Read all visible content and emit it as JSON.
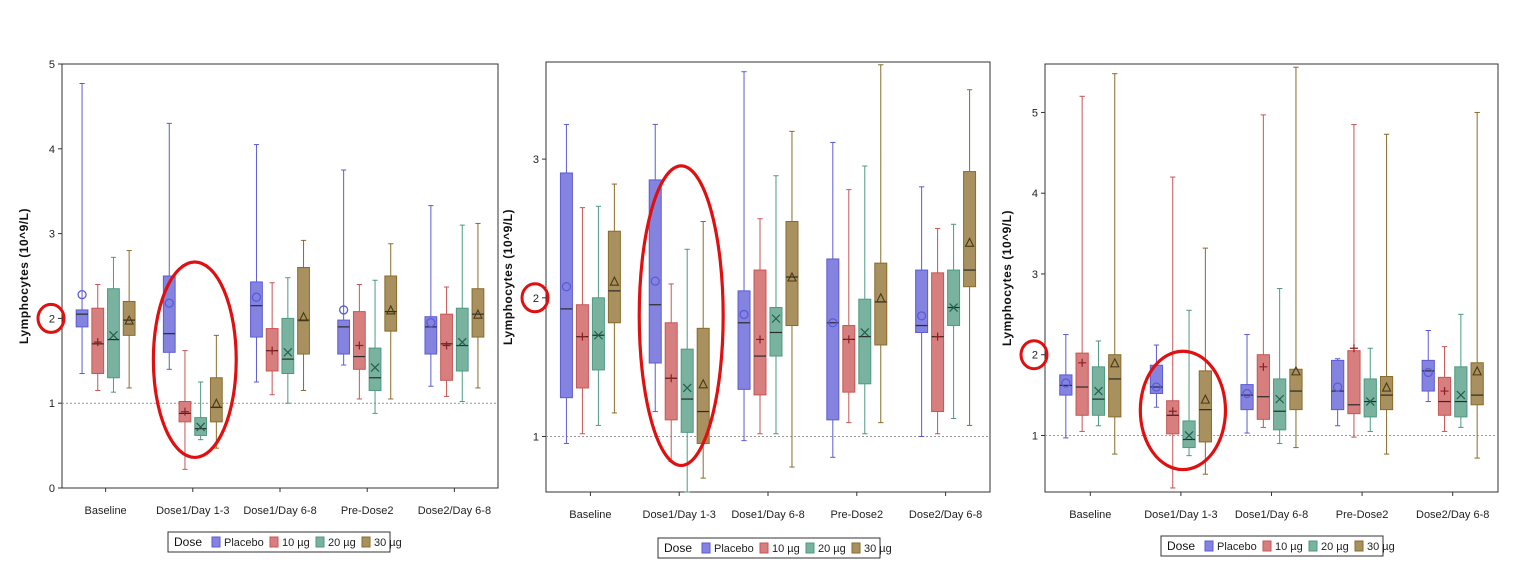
{
  "chart_data": [
    {
      "type": "box",
      "ylabel": "Lymphocytes (10^9/L)",
      "ylim": [
        0,
        5
      ],
      "yticks": [
        0,
        1,
        2,
        3,
        4,
        5
      ],
      "reference_line": 1,
      "categories": [
        "Baseline",
        "Dose1/Day 1-3",
        "Dose1/Day 6-8",
        "Pre-Dose2",
        "Dose2/Day 6-8"
      ],
      "legend_title": "Dose",
      "legend_position": "bottom",
      "series": [
        {
          "name": "Placebo",
          "color": "#5b5bd6",
          "marker": "circle",
          "boxes": [
            {
              "min": 1.35,
              "q1": 1.9,
              "median": 2.05,
              "q3": 2.1,
              "max": 4.77,
              "mean": 2.28
            },
            {
              "min": 1.4,
              "q1": 1.6,
              "median": 1.82,
              "q3": 2.5,
              "max": 4.3,
              "mean": 2.18
            },
            {
              "min": 1.25,
              "q1": 1.78,
              "median": 2.15,
              "q3": 2.43,
              "max": 4.05,
              "mean": 2.25
            },
            {
              "min": 1.45,
              "q1": 1.58,
              "median": 1.9,
              "q3": 1.98,
              "max": 3.75,
              "mean": 2.1
            },
            {
              "min": 1.2,
              "q1": 1.58,
              "median": 1.9,
              "q3": 2.02,
              "max": 3.33,
              "mean": 1.95
            }
          ]
        },
        {
          "name": "10 µg",
          "color": "#c95454",
          "marker": "plus",
          "boxes": [
            {
              "min": 1.15,
              "q1": 1.35,
              "median": 1.7,
              "q3": 2.12,
              "max": 2.4,
              "mean": 1.72
            },
            {
              "min": 0.22,
              "q1": 0.78,
              "median": 0.88,
              "q3": 1.02,
              "max": 1.62,
              "mean": 0.9
            },
            {
              "min": 1.1,
              "q1": 1.38,
              "median": 1.62,
              "q3": 1.88,
              "max": 2.42,
              "mean": 1.62
            },
            {
              "min": 1.05,
              "q1": 1.4,
              "median": 1.55,
              "q3": 2.08,
              "max": 2.4,
              "mean": 1.68
            },
            {
              "min": 1.08,
              "q1": 1.27,
              "median": 1.7,
              "q3": 2.05,
              "max": 2.37,
              "mean": 1.68
            }
          ]
        },
        {
          "name": "20 µg",
          "color": "#4c9a80",
          "marker": "x",
          "boxes": [
            {
              "min": 1.13,
              "q1": 1.3,
              "median": 1.75,
              "q3": 2.35,
              "max": 2.72,
              "mean": 1.8
            },
            {
              "min": 0.57,
              "q1": 0.62,
              "median": 0.7,
              "q3": 0.83,
              "max": 1.25,
              "mean": 0.72
            },
            {
              "min": 1.0,
              "q1": 1.35,
              "median": 1.52,
              "q3": 2.0,
              "max": 2.48,
              "mean": 1.6
            },
            {
              "min": 0.88,
              "q1": 1.15,
              "median": 1.3,
              "q3": 1.65,
              "max": 2.45,
              "mean": 1.42
            },
            {
              "min": 1.02,
              "q1": 1.38,
              "median": 1.68,
              "q3": 2.12,
              "max": 3.1,
              "mean": 1.72
            }
          ]
        },
        {
          "name": "30 µg",
          "color": "#8b6b2a",
          "marker": "triangle",
          "boxes": [
            {
              "min": 1.18,
              "q1": 1.8,
              "median": 1.98,
              "q3": 2.2,
              "max": 2.8,
              "mean": 1.98
            },
            {
              "min": 0.47,
              "q1": 0.78,
              "median": 0.95,
              "q3": 1.3,
              "max": 1.8,
              "mean": 1.0
            },
            {
              "min": 1.15,
              "q1": 1.58,
              "median": 1.98,
              "q3": 2.6,
              "max": 2.92,
              "mean": 2.02
            },
            {
              "min": 1.05,
              "q1": 1.85,
              "median": 2.08,
              "q3": 2.5,
              "max": 2.88,
              "mean": 2.1
            },
            {
              "min": 1.18,
              "q1": 1.78,
              "median": 2.05,
              "q3": 2.35,
              "max": 3.12,
              "mean": 2.05
            }
          ]
        }
      ],
      "annotations": [
        {
          "type": "circle",
          "target": "y-tick 2"
        },
        {
          "type": "circle",
          "target": "Dose1/Day 1-3 boxes"
        }
      ]
    },
    {
      "type": "box",
      "ylabel": "Lymphocytes (10^9/L)",
      "ylim": [
        0.6,
        3.7
      ],
      "yticks": [
        1,
        2,
        3
      ],
      "reference_line": 1,
      "categories": [
        "Baseline",
        "Dose1/Day 1-3",
        "Dose1/Day 6-8",
        "Pre-Dose2",
        "Dose2/Day 6-8"
      ],
      "legend_title": "Dose",
      "legend_position": "bottom",
      "series": [
        {
          "name": "Placebo",
          "color": "#5b5bd6",
          "marker": "circle",
          "boxes": [
            {
              "min": 0.95,
              "q1": 1.28,
              "median": 1.92,
              "q3": 2.9,
              "max": 3.25,
              "mean": 2.08
            },
            {
              "min": 1.18,
              "q1": 1.53,
              "median": 1.95,
              "q3": 2.85,
              "max": 3.25,
              "mean": 2.12
            },
            {
              "min": 0.97,
              "q1": 1.34,
              "median": 1.82,
              "q3": 2.05,
              "max": 3.63,
              "mean": 1.88
            },
            {
              "min": 0.85,
              "q1": 1.12,
              "median": 1.82,
              "q3": 2.28,
              "max": 3.12,
              "mean": 1.82
            },
            {
              "min": 1.0,
              "q1": 1.75,
              "median": 1.8,
              "q3": 2.2,
              "max": 2.8,
              "mean": 1.87
            }
          ]
        },
        {
          "name": "10 µg",
          "color": "#c95454",
          "marker": "plus",
          "boxes": [
            {
              "min": 1.02,
              "q1": 1.35,
              "median": 1.72,
              "q3": 1.95,
              "max": 2.65,
              "mean": 1.72
            },
            {
              "min": 0.82,
              "q1": 1.12,
              "median": 1.42,
              "q3": 1.82,
              "max": 2.1,
              "mean": 1.42
            },
            {
              "min": 1.02,
              "q1": 1.3,
              "median": 1.58,
              "q3": 2.2,
              "max": 2.57,
              "mean": 1.7
            },
            {
              "min": 1.1,
              "q1": 1.32,
              "median": 1.7,
              "q3": 1.8,
              "max": 2.78,
              "mean": 1.7
            },
            {
              "min": 1.02,
              "q1": 1.18,
              "median": 1.72,
              "q3": 2.18,
              "max": 2.5,
              "mean": 1.72
            }
          ]
        },
        {
          "name": "20 µg",
          "color": "#4c9a80",
          "marker": "x",
          "boxes": [
            {
              "min": 1.08,
              "q1": 1.48,
              "median": 1.73,
              "q3": 2.0,
              "max": 2.66,
              "mean": 1.73
            },
            {
              "min": 0.6,
              "q1": 1.03,
              "median": 1.27,
              "q3": 1.63,
              "max": 2.35,
              "mean": 1.35
            },
            {
              "min": 1.02,
              "q1": 1.58,
              "median": 1.75,
              "q3": 1.93,
              "max": 2.88,
              "mean": 1.85
            },
            {
              "min": 1.02,
              "q1": 1.38,
              "median": 1.72,
              "q3": 1.99,
              "max": 2.95,
              "mean": 1.75
            },
            {
              "min": 1.13,
              "q1": 1.8,
              "median": 1.93,
              "q3": 2.2,
              "max": 2.53,
              "mean": 1.93
            }
          ]
        },
        {
          "name": "30 µg",
          "color": "#8b6b2a",
          "marker": "triangle",
          "boxes": [
            {
              "min": 1.17,
              "q1": 1.82,
              "median": 2.05,
              "q3": 2.48,
              "max": 2.82,
              "mean": 2.12
            },
            {
              "min": 0.7,
              "q1": 0.95,
              "median": 1.18,
              "q3": 1.78,
              "max": 2.55,
              "mean": 1.38
            },
            {
              "min": 0.78,
              "q1": 1.8,
              "median": 2.15,
              "q3": 2.55,
              "max": 3.2,
              "mean": 2.15
            },
            {
              "min": 1.1,
              "q1": 1.66,
              "median": 1.97,
              "q3": 2.25,
              "max": 3.68,
              "mean": 2.0
            },
            {
              "min": 1.08,
              "q1": 2.08,
              "median": 2.2,
              "q3": 2.91,
              "max": 3.5,
              "mean": 2.4
            }
          ]
        }
      ],
      "annotations": [
        {
          "type": "circle",
          "target": "y-tick 2"
        },
        {
          "type": "circle",
          "target": "Dose1/Day 1-3 boxes"
        }
      ]
    },
    {
      "type": "box",
      "ylabel": "Lymphocytes (10^9/L)",
      "ylim": [
        0.3,
        5.6
      ],
      "yticks": [
        1,
        2,
        3,
        4,
        5
      ],
      "reference_line": 1,
      "categories": [
        "Baseline",
        "Dose1/Day 1-3",
        "Dose1/Day 6-8",
        "Pre-Dose2",
        "Dose2/Day 6-8"
      ],
      "legend_title": "Dose",
      "legend_position": "bottom",
      "series": [
        {
          "name": "Placebo",
          "color": "#5b5bd6",
          "marker": "circle",
          "boxes": [
            {
              "min": 0.97,
              "q1": 1.5,
              "median": 1.62,
              "q3": 1.75,
              "max": 2.25,
              "mean": 1.65
            },
            {
              "min": 1.35,
              "q1": 1.52,
              "median": 1.6,
              "q3": 1.87,
              "max": 2.12,
              "mean": 1.6
            },
            {
              "min": 1.03,
              "q1": 1.32,
              "median": 1.5,
              "q3": 1.63,
              "max": 2.25,
              "mean": 1.52
            },
            {
              "min": 1.12,
              "q1": 1.32,
              "median": 1.55,
              "q3": 1.93,
              "max": 1.95,
              "mean": 1.6
            },
            {
              "min": 1.42,
              "q1": 1.55,
              "median": 1.8,
              "q3": 1.93,
              "max": 2.3,
              "mean": 1.78
            }
          ]
        },
        {
          "name": "10 µg",
          "color": "#c95454",
          "marker": "plus",
          "boxes": [
            {
              "min": 1.05,
              "q1": 1.25,
              "median": 1.6,
              "q3": 2.02,
              "max": 5.2,
              "mean": 1.9
            },
            {
              "min": 0.35,
              "q1": 1.02,
              "median": 1.25,
              "q3": 1.43,
              "max": 4.2,
              "mean": 1.3
            },
            {
              "min": 1.1,
              "q1": 1.2,
              "median": 1.48,
              "q3": 2.0,
              "max": 4.97,
              "mean": 1.85
            },
            {
              "min": 0.98,
              "q1": 1.27,
              "median": 1.38,
              "q3": 2.05,
              "max": 4.85,
              "mean": 2.08
            },
            {
              "min": 1.05,
              "q1": 1.25,
              "median": 1.42,
              "q3": 1.72,
              "max": 2.1,
              "mean": 1.55
            }
          ]
        },
        {
          "name": "20 µg",
          "color": "#4c9a80",
          "marker": "x",
          "boxes": [
            {
              "min": 1.12,
              "q1": 1.25,
              "median": 1.45,
              "q3": 1.85,
              "max": 2.17,
              "mean": 1.55
            },
            {
              "min": 0.75,
              "q1": 0.85,
              "median": 0.95,
              "q3": 1.18,
              "max": 2.55,
              "mean": 1.0
            },
            {
              "min": 0.9,
              "q1": 1.07,
              "median": 1.3,
              "q3": 1.7,
              "max": 2.82,
              "mean": 1.45
            },
            {
              "min": 1.05,
              "q1": 1.23,
              "median": 1.42,
              "q3": 1.7,
              "max": 2.08,
              "mean": 1.42
            },
            {
              "min": 1.1,
              "q1": 1.23,
              "median": 1.42,
              "q3": 1.85,
              "max": 2.5,
              "mean": 1.5
            }
          ]
        },
        {
          "name": "30 µg",
          "color": "#8b6b2a",
          "marker": "triangle",
          "boxes": [
            {
              "min": 0.77,
              "q1": 1.23,
              "median": 1.7,
              "q3": 2.0,
              "max": 5.48,
              "mean": 1.9
            },
            {
              "min": 0.52,
              "q1": 0.92,
              "median": 1.32,
              "q3": 1.8,
              "max": 3.32,
              "mean": 1.45
            },
            {
              "min": 0.85,
              "q1": 1.32,
              "median": 1.55,
              "q3": 1.82,
              "max": 5.56,
              "mean": 1.8
            },
            {
              "min": 0.77,
              "q1": 1.32,
              "median": 1.5,
              "q3": 1.73,
              "max": 4.73,
              "mean": 1.6
            },
            {
              "min": 0.72,
              "q1": 1.38,
              "median": 1.5,
              "q3": 1.9,
              "max": 5.0,
              "mean": 1.8
            }
          ]
        }
      ],
      "annotations": [
        {
          "type": "circle",
          "target": "y-tick 2"
        },
        {
          "type": "circle",
          "target": "Dose1/Day 1-3 boxes"
        }
      ]
    }
  ]
}
